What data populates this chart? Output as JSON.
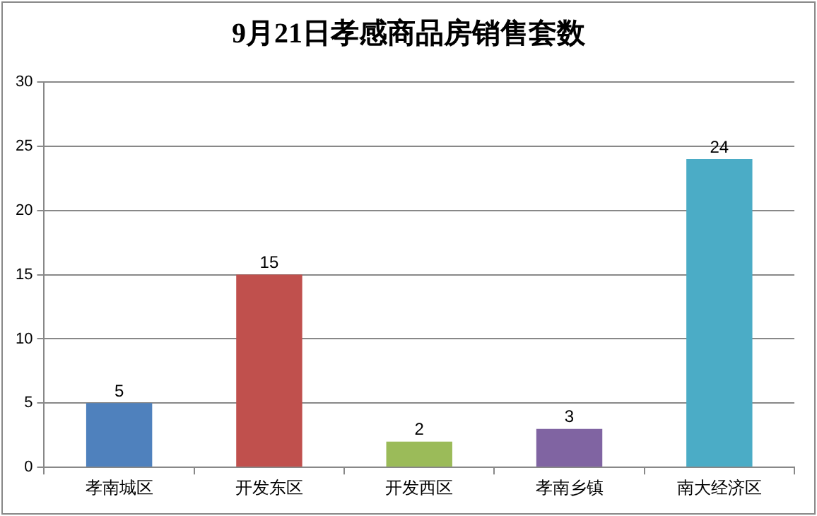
{
  "chart_data": {
    "type": "bar",
    "title": "9月21日孝感商品房销售套数",
    "categories": [
      "孝南城区",
      "开发东区",
      "开发西区",
      "孝南乡镇",
      "南大经济区"
    ],
    "values": [
      5,
      15,
      2,
      3,
      24
    ],
    "colors": [
      "#4f81bd",
      "#c0504d",
      "#9bbb59",
      "#8064a2",
      "#4bacc6"
    ],
    "ylim": [
      0,
      30
    ],
    "yticks": [
      0,
      5,
      10,
      15,
      20,
      25,
      30
    ],
    "grid": "y",
    "legend": false,
    "data_labels": true
  }
}
